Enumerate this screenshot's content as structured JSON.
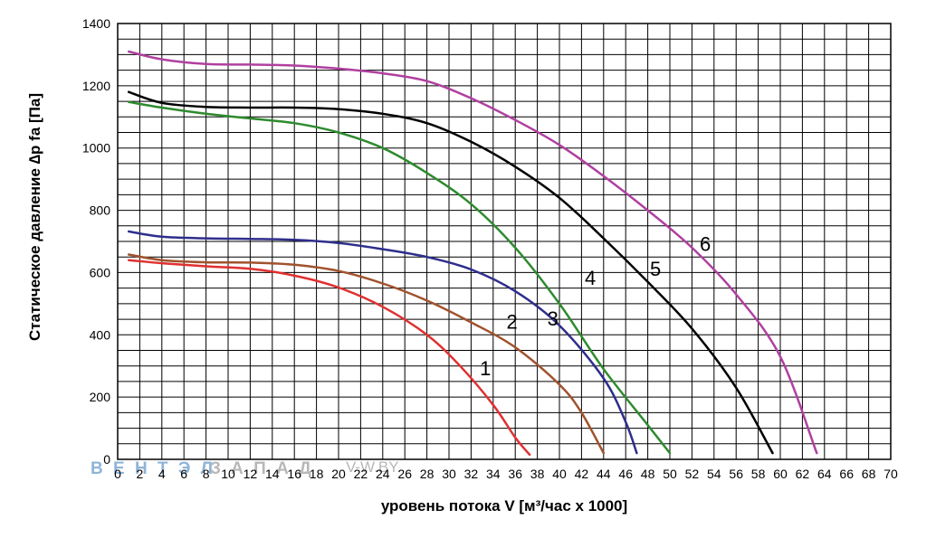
{
  "chart_data": {
    "type": "line",
    "xlabel": "уровень потока  V [м³/час x 1000]",
    "ylabel": "Статическое давление  ∆p fa [Па]",
    "xlim": [
      0,
      70
    ],
    "ylim": [
      0,
      1400
    ],
    "x_ticks": [
      "0",
      "2",
      "4",
      "6",
      "8",
      "10",
      "12",
      "14",
      "16",
      "18",
      "20",
      "22",
      "24",
      "26",
      "28",
      "30",
      "32",
      "34",
      "36",
      "38",
      "40",
      "42",
      "44",
      "46",
      "48",
      "50",
      "52",
      "54",
      "56",
      "58",
      "60",
      "62",
      "64",
      "66",
      "68",
      "70"
    ],
    "y_ticks": [
      "0",
      "200",
      "400",
      "600",
      "800",
      "1000",
      "1200",
      "1400"
    ],
    "grid": true,
    "series": [
      {
        "name": "1",
        "color": "#e03030",
        "label_at": [
          32.8,
          270
        ],
        "points": [
          [
            1,
            640
          ],
          [
            4,
            630
          ],
          [
            8,
            620
          ],
          [
            12,
            612
          ],
          [
            16,
            590
          ],
          [
            20,
            552
          ],
          [
            24,
            490
          ],
          [
            28,
            400
          ],
          [
            31,
            300
          ],
          [
            34,
            175
          ],
          [
            36,
            70
          ],
          [
            37.3,
            15
          ]
        ]
      },
      {
        "name": "2",
        "color": "#a0522d",
        "label_at": [
          35.2,
          420
        ],
        "points": [
          [
            1,
            658
          ],
          [
            4,
            640
          ],
          [
            8,
            633
          ],
          [
            12,
            632
          ],
          [
            16,
            625
          ],
          [
            20,
            605
          ],
          [
            24,
            565
          ],
          [
            28,
            510
          ],
          [
            32,
            440
          ],
          [
            36,
            360
          ],
          [
            40,
            240
          ],
          [
            42,
            150
          ],
          [
            44,
            20
          ]
        ]
      },
      {
        "name": "3",
        "color": "#2e2e8c",
        "label_at": [
          38.9,
          430
        ],
        "points": [
          [
            1,
            732
          ],
          [
            4,
            715
          ],
          [
            8,
            710
          ],
          [
            12,
            708
          ],
          [
            16,
            705
          ],
          [
            20,
            695
          ],
          [
            24,
            675
          ],
          [
            28,
            650
          ],
          [
            32,
            610
          ],
          [
            36,
            540
          ],
          [
            40,
            430
          ],
          [
            44,
            260
          ],
          [
            46,
            120
          ],
          [
            47,
            20
          ]
        ]
      },
      {
        "name": "4",
        "color": "#2e8b2e",
        "label_at": [
          42.3,
          560
        ],
        "points": [
          [
            1,
            1148
          ],
          [
            4,
            1130
          ],
          [
            8,
            1110
          ],
          [
            12,
            1095
          ],
          [
            16,
            1080
          ],
          [
            20,
            1050
          ],
          [
            24,
            1000
          ],
          [
            28,
            920
          ],
          [
            32,
            820
          ],
          [
            36,
            680
          ],
          [
            40,
            500
          ],
          [
            44,
            290
          ],
          [
            48,
            110
          ],
          [
            50,
            20
          ]
        ]
      },
      {
        "name": "5",
        "color": "#000000",
        "label_at": [
          48.2,
          590
        ],
        "points": [
          [
            1,
            1180
          ],
          [
            4,
            1145
          ],
          [
            8,
            1132
          ],
          [
            12,
            1130
          ],
          [
            16,
            1130
          ],
          [
            20,
            1125
          ],
          [
            24,
            1110
          ],
          [
            28,
            1080
          ],
          [
            32,
            1020
          ],
          [
            36,
            940
          ],
          [
            40,
            840
          ],
          [
            44,
            710
          ],
          [
            48,
            570
          ],
          [
            52,
            420
          ],
          [
            56,
            230
          ],
          [
            59.3,
            20
          ]
        ]
      },
      {
        "name": "6",
        "color": "#b040a0",
        "label_at": [
          52.7,
          670
        ],
        "points": [
          [
            1,
            1310
          ],
          [
            4,
            1285
          ],
          [
            8,
            1270
          ],
          [
            12,
            1268
          ],
          [
            16,
            1265
          ],
          [
            20,
            1255
          ],
          [
            24,
            1240
          ],
          [
            28,
            1215
          ],
          [
            32,
            1160
          ],
          [
            36,
            1090
          ],
          [
            40,
            1010
          ],
          [
            44,
            910
          ],
          [
            48,
            800
          ],
          [
            52,
            680
          ],
          [
            56,
            530
          ],
          [
            60,
            330
          ],
          [
            63.3,
            20
          ]
        ]
      }
    ]
  },
  "watermark": {
    "brand_blue": "В Е Н Т Э Л",
    "brand_grey": "З А П А Д",
    "site": "V-W.BY"
  }
}
